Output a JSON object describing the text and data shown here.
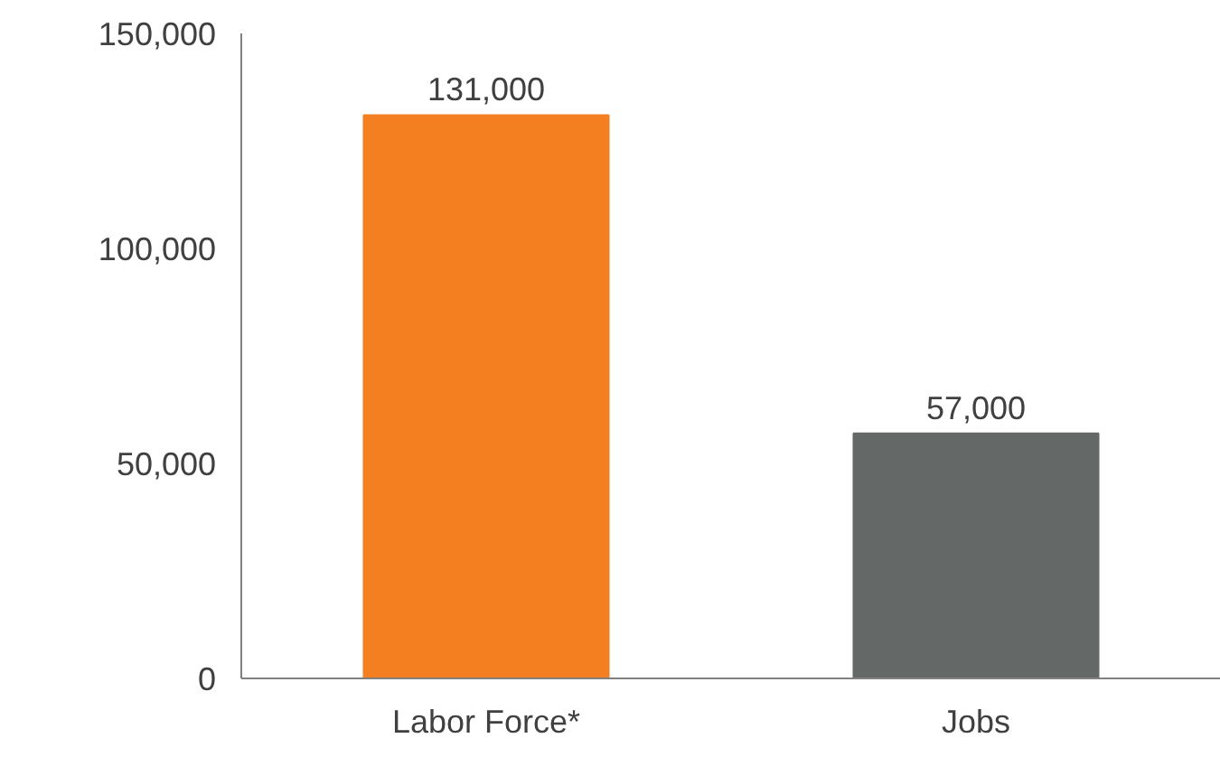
{
  "chart_data": {
    "type": "bar",
    "categories": [
      "Labor Force*",
      "Jobs"
    ],
    "values": [
      131000,
      57000
    ],
    "colors": [
      "#f47f20",
      "#646867"
    ],
    "ylim": [
      0,
      150000
    ],
    "yticks": [
      {
        "value": 0,
        "label": "0"
      },
      {
        "value": 50000,
        "label": "50,000"
      },
      {
        "value": 100000,
        "label": "100,000"
      },
      {
        "value": 150000,
        "label": "150,000"
      }
    ],
    "value_labels": [
      "131,000",
      "57,000"
    ],
    "grid": false
  }
}
